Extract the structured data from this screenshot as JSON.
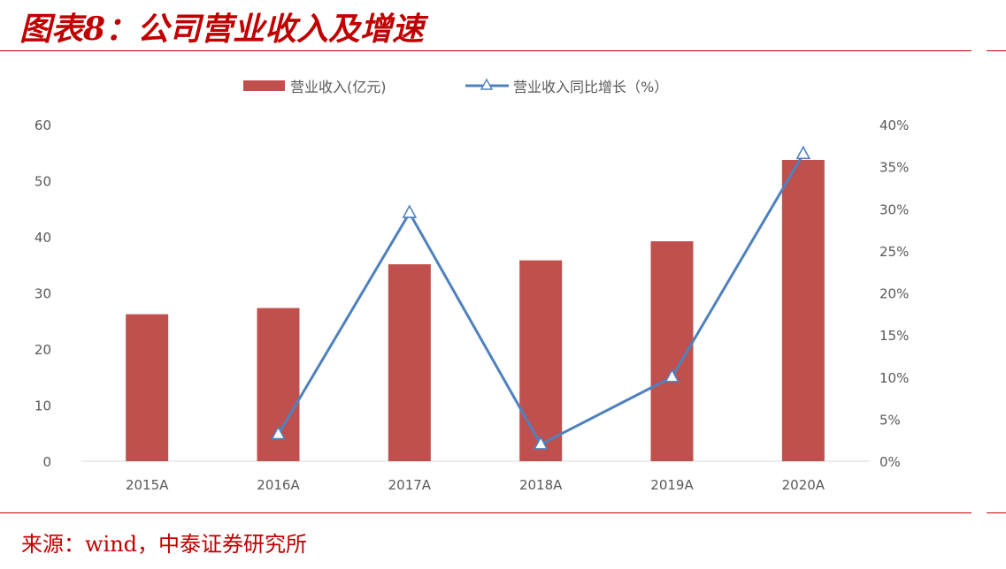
{
  "figure": {
    "title": "图表8：公司营业收入及增速",
    "source": "来源：wind，中泰证券研究所"
  },
  "chart_data": {
    "type": "bar+line",
    "categories": [
      "2015A",
      "2016A",
      "2017A",
      "2018A",
      "2019A",
      "2020A"
    ],
    "series": [
      {
        "name": "营业收入(亿元)",
        "type": "bar",
        "axis": "left",
        "values": [
          26.2,
          27.3,
          35.1,
          35.8,
          39.2,
          53.7
        ],
        "color": "#c0504d"
      },
      {
        "name": "营业收入同比增长（%）",
        "type": "line",
        "axis": "right",
        "values": [
          null,
          3.2,
          29.5,
          2.0,
          10.0,
          36.5
        ],
        "color": "#4f81bd"
      }
    ],
    "y_left": {
      "ylim": [
        0,
        60
      ],
      "ticks": [
        0,
        10,
        20,
        30,
        40,
        50,
        60
      ]
    },
    "y_right": {
      "ylim": [
        0,
        40
      ],
      "ticks": [
        0,
        5,
        10,
        15,
        20,
        25,
        30,
        35,
        40
      ],
      "tick_suffix": "%"
    },
    "legend_position": "top-center",
    "grid": false
  }
}
